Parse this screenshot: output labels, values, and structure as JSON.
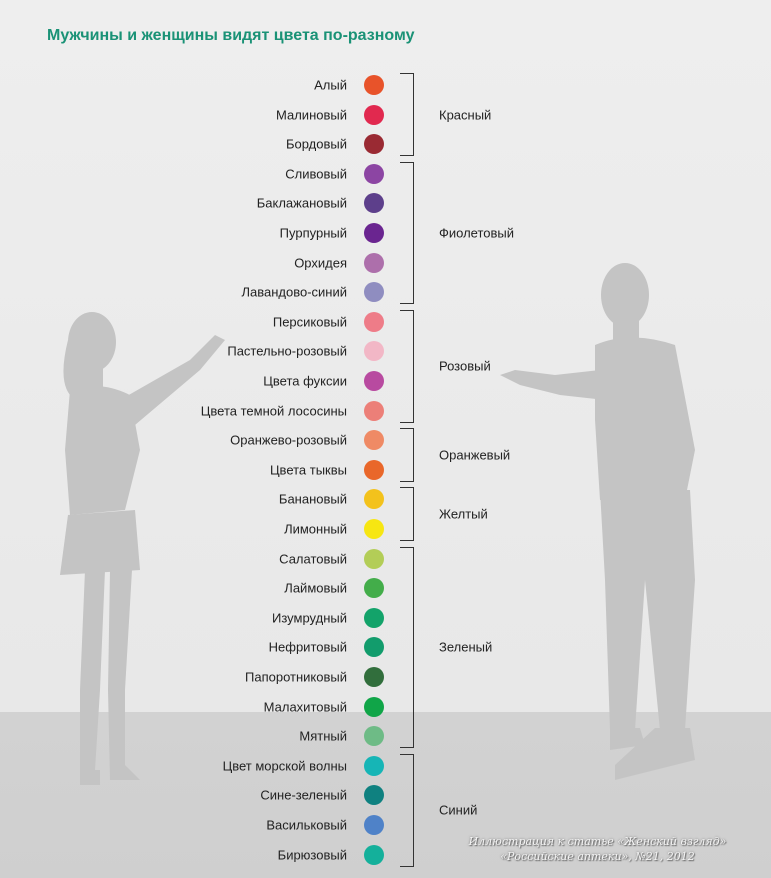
{
  "title": "Мужчины и женщины видят цвета по-разному",
  "items": [
    {
      "label": "Алый",
      "color": "#e8532a"
    },
    {
      "label": "Малиновый",
      "color": "#e1294f"
    },
    {
      "label": "Бордовый",
      "color": "#9a2a33"
    },
    {
      "label": "Сливовый",
      "color": "#8c45a3"
    },
    {
      "label": "Баклажановый",
      "color": "#5d3f8b"
    },
    {
      "label": "Пурпурный",
      "color": "#6a2590"
    },
    {
      "label": "Орхидея",
      "color": "#ad6fab"
    },
    {
      "label": "Лавандово-синий",
      "color": "#8f8dc0"
    },
    {
      "label": "Персиковый",
      "color": "#ee7c88"
    },
    {
      "label": "Пастельно-розовый",
      "color": "#f2b7c6"
    },
    {
      "label": "Цвета фуксии",
      "color": "#b84aa0"
    },
    {
      "label": "Цвета темной лососины",
      "color": "#ec7f78"
    },
    {
      "label": "Оранжево-розовый",
      "color": "#ef8a65"
    },
    {
      "label": "Цвета тыквы",
      "color": "#e9672a"
    },
    {
      "label": "Банановый",
      "color": "#f3c21c"
    },
    {
      "label": "Лимонный",
      "color": "#f7e612"
    },
    {
      "label": "Салатовый",
      "color": "#b3cd57"
    },
    {
      "label": "Лаймовый",
      "color": "#43ad4a"
    },
    {
      "label": "Изумрудный",
      "color": "#13a36a"
    },
    {
      "label": "Нефритовый",
      "color": "#129c6c"
    },
    {
      "label": "Папоротниковый",
      "color": "#316e3c"
    },
    {
      "label": "Малахитовый",
      "color": "#10a548"
    },
    {
      "label": "Мятный",
      "color": "#6ebb86"
    },
    {
      "label": "Цвет морской волны",
      "color": "#16b5b6"
    },
    {
      "label": "Сине-зеленый",
      "color": "#0f8180"
    },
    {
      "label": "Васильковый",
      "color": "#4f82c8"
    },
    {
      "label": "Бирюзовый",
      "color": "#14b09b"
    }
  ],
  "groups": [
    {
      "label": "Красный",
      "first": 0,
      "last": 2
    },
    {
      "label": "Фиолетовый",
      "first": 3,
      "last": 7
    },
    {
      "label": "Розовый",
      "first": 8,
      "last": 11
    },
    {
      "label": "Оранжевый",
      "first": 12,
      "last": 13
    },
    {
      "label": "Желтый",
      "first": 14,
      "last": 15
    },
    {
      "label": "Зеленый",
      "first": 16,
      "last": 22
    },
    {
      "label": "Синий",
      "first": 23,
      "last": 26
    }
  ],
  "watermark": {
    "line1": "Иллюстрация к статье «Женский взгляд»",
    "line2": "«Российские аптеки», №21, 2012"
  },
  "colors": {
    "title": "#1a9276",
    "figure": "#c4c4c4",
    "background": "#eeeeee",
    "floor": "#d2d2d2"
  }
}
